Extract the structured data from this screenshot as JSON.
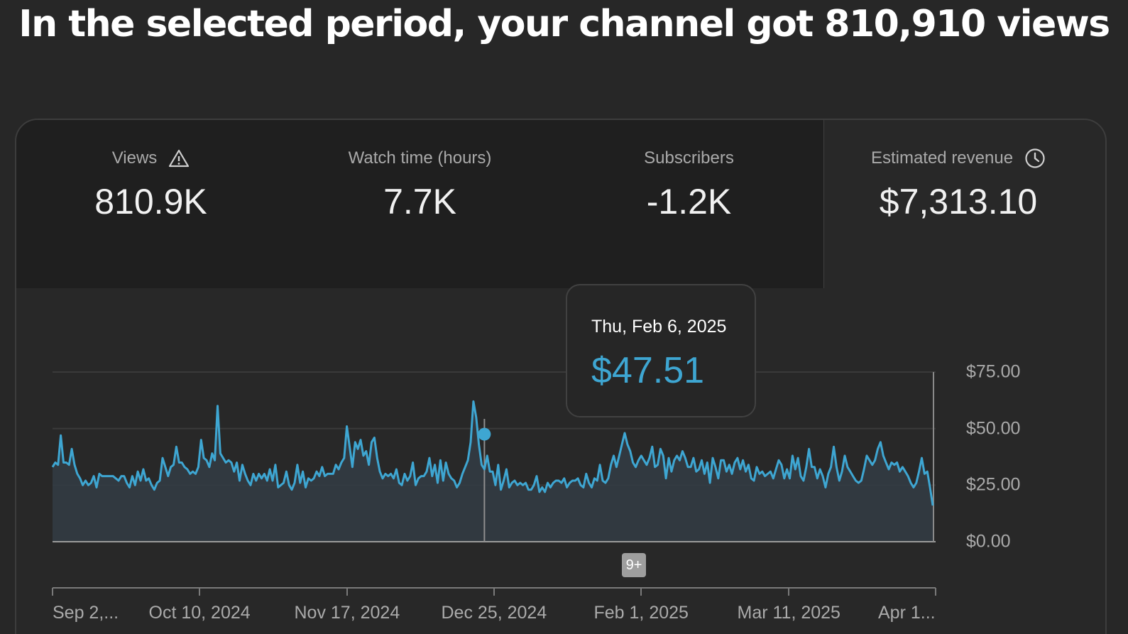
{
  "headline": "In the selected period, your channel got 810,910 views",
  "metrics": [
    {
      "label": "Views",
      "value": "810.9K",
      "icon": "warning-icon"
    },
    {
      "label": "Watch time (hours)",
      "value": "7.7K"
    },
    {
      "label": "Subscribers",
      "value": "-1.2K"
    },
    {
      "label": "Estimated revenue",
      "value": "$7,313.10",
      "icon": "clock-icon"
    }
  ],
  "selected_metric": "Estimated revenue",
  "tooltip": {
    "date": "Thu, Feb 6, 2025",
    "value": "$47.51"
  },
  "badge": "9+",
  "colors": {
    "accent": "#3ea6d2",
    "background": "#272727",
    "card_dark": "#1f1f1f"
  },
  "chart_data": {
    "type": "area",
    "series": [
      {
        "values": [
          33,
          35,
          34,
          47,
          35,
          35,
          34,
          41,
          34,
          30,
          28,
          25,
          27,
          25,
          26,
          29,
          24,
          30,
          29,
          29,
          29,
          29,
          29,
          28,
          27,
          29,
          29,
          26,
          24,
          29,
          25,
          31,
          27,
          32,
          27,
          28,
          25,
          23,
          26,
          27,
          37,
          33,
          29,
          33,
          34,
          42,
          35,
          35,
          33,
          32,
          30,
          31,
          30,
          33,
          45,
          37,
          36,
          33,
          39,
          36,
          60,
          39,
          37,
          35,
          36,
          35,
          31,
          35,
          27,
          34,
          30,
          27,
          25,
          30,
          27,
          30,
          28,
          30,
          27,
          32,
          27,
          34,
          24,
          25,
          26,
          31,
          25,
          23,
          26,
          34,
          26,
          31,
          24,
          28,
          27,
          28,
          31,
          29,
          33,
          29,
          30,
          30,
          30,
          34,
          32,
          35,
          37,
          51,
          42,
          33,
          44,
          41,
          45,
          38,
          40,
          34,
          44,
          46,
          37,
          31,
          28,
          30,
          29,
          30,
          28,
          32,
          26,
          25,
          30,
          27,
          29,
          35,
          25,
          28,
          29,
          29,
          31,
          37,
          29,
          34,
          26,
          36,
          27,
          35,
          30,
          28,
          27,
          24,
          26,
          30,
          33,
          36,
          44,
          62,
          55,
          43,
          34,
          32,
          38,
          31,
          31,
          25,
          34,
          23,
          27,
          32,
          24,
          26,
          27,
          25,
          26,
          25,
          26,
          23,
          23,
          25,
          29,
          22,
          24,
          22,
          26,
          24,
          26,
          27,
          27,
          26,
          28,
          24,
          26,
          27,
          27,
          28,
          25,
          24,
          30,
          26,
          24,
          28,
          27,
          34,
          27,
          26,
          28,
          34,
          38,
          33,
          38,
          43,
          48,
          43,
          40,
          35,
          33,
          36,
          38,
          36,
          34,
          37,
          42,
          33,
          34,
          41,
          38,
          28,
          37,
          31,
          36,
          38,
          36,
          40,
          37,
          33,
          33,
          37,
          31,
          32,
          36,
          30,
          35,
          26,
          37,
          33,
          28,
          36,
          36,
          31,
          34,
          30,
          35,
          37,
          32,
          36,
          31,
          34,
          28,
          27,
          33,
          30,
          31,
          29,
          30,
          31,
          28,
          32,
          36,
          34,
          28,
          32,
          28,
          38,
          32,
          37,
          29,
          27,
          33,
          41,
          33,
          33,
          28,
          32,
          29,
          24,
          30,
          33,
          42,
          33,
          27,
          31,
          38,
          33,
          31,
          29,
          27,
          26,
          27,
          32,
          38,
          36,
          34,
          36,
          41,
          44,
          38,
          35,
          32,
          35,
          34,
          35,
          31,
          33,
          31,
          29,
          26,
          24,
          26,
          31,
          37,
          30,
          31,
          24,
          16
        ],
        "start_date": "Sep 2, 2024",
        "end_date": "Apr 1, 2025"
      }
    ],
    "highlight": {
      "date": "Thu, Feb 6, 2025",
      "value": 47.51
    },
    "ylim": [
      0,
      75
    ],
    "ytick_labels": [
      "$75.00",
      "$50.00",
      "$25.00",
      "$0.00"
    ],
    "ytick_values": [
      75,
      50,
      25,
      0
    ],
    "xtick_labels": [
      "Sep 2,...",
      "Oct 10, 2024",
      "Nov 17, 2024",
      "Dec 25, 2024",
      "Feb 1, 2025",
      "Mar 11, 2025",
      "Apr 1..."
    ],
    "grid": true,
    "legend": "none"
  }
}
